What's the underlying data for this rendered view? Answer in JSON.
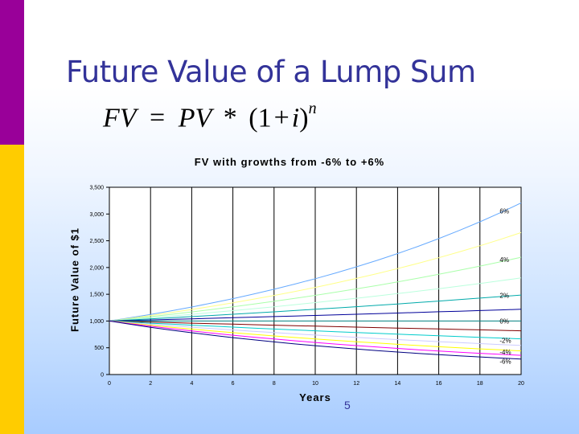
{
  "slide": {
    "title": "Future Value of a Lump Sum",
    "formula": {
      "fv": "FV",
      "eq": "=",
      "pv": "PV",
      "star": "*",
      "lparen": "(1",
      "plus": "+",
      "i": "i",
      "rparen": ")",
      "exp": "n"
    },
    "page_number": "5",
    "colors": {
      "title": "#333399",
      "bar_top": "#990099",
      "bar_bottom": "#ffcc00"
    }
  },
  "chart_data": {
    "type": "line",
    "title": "FV with growths from -6% to +6%",
    "xlabel": "Years",
    "ylabel": "Future Value of $1",
    "xlim": [
      0,
      20
    ],
    "ylim": [
      0,
      3500
    ],
    "x_ticks": [
      "0",
      "2",
      "4",
      "6",
      "8",
      "10",
      "12",
      "14",
      "16",
      "18",
      "20"
    ],
    "y_ticks": [
      "0",
      "500",
      "1,000",
      "1,500",
      "2,000",
      "2,500",
      "3,000",
      "3,500"
    ],
    "grid": true,
    "x": [
      0,
      20
    ],
    "series": [
      {
        "rate": 0.06,
        "values": [
          1000,
          3207
        ],
        "color": "#66aaff"
      },
      {
        "rate": 0.05,
        "values": [
          1000,
          2653
        ],
        "color": "#ffff88"
      },
      {
        "rate": 0.04,
        "values": [
          1000,
          2191
        ],
        "color": "#aaffaa"
      },
      {
        "rate": 0.03,
        "values": [
          1000,
          1806
        ],
        "color": "#bbffdd"
      },
      {
        "rate": 0.02,
        "values": [
          1000,
          1486
        ],
        "color": "#00aaaa"
      },
      {
        "rate": 0.01,
        "values": [
          1000,
          1220
        ],
        "color": "#000099"
      },
      {
        "rate": 0.0,
        "values": [
          1000,
          1000
        ],
        "color": "#008080"
      },
      {
        "rate": -0.01,
        "values": [
          1000,
          818
        ],
        "color": "#800000"
      },
      {
        "rate": -0.02,
        "values": [
          1000,
          668
        ],
        "color": "#00cccc"
      },
      {
        "rate": -0.03,
        "values": [
          1000,
          544
        ],
        "color": "#ccccff"
      },
      {
        "rate": -0.04,
        "values": [
          1000,
          442
        ],
        "color": "#ffff00"
      },
      {
        "rate": -0.05,
        "values": [
          1000,
          358
        ],
        "color": "#ff00ff"
      },
      {
        "rate": -0.06,
        "values": [
          1000,
          290
        ],
        "color": "#000080"
      }
    ],
    "annotations": [
      {
        "text": "6%",
        "x": 19,
        "y": 3060
      },
      {
        "text": "4%",
        "x": 19,
        "y": 2150
      },
      {
        "text": "2%",
        "x": 19,
        "y": 1480
      },
      {
        "text": "0%",
        "x": 19,
        "y": 1000
      },
      {
        "text": "-2%",
        "x": 19,
        "y": 640
      },
      {
        "text": "-4%",
        "x": 19,
        "y": 420
      },
      {
        "text": "-6%",
        "x": 19,
        "y": 250
      }
    ]
  }
}
